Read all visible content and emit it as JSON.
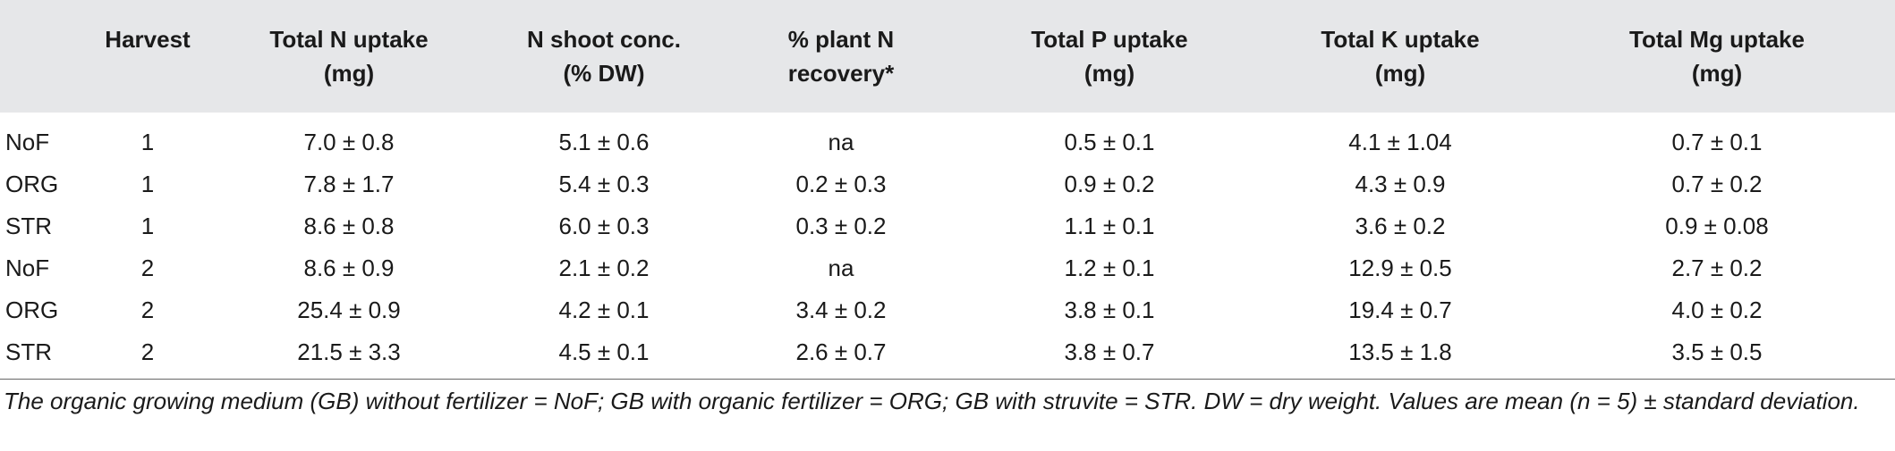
{
  "table": {
    "headers": [
      "",
      "Harvest",
      "Total N uptake (mg)",
      "N shoot conc. (% DW)",
      "% plant N recovery*",
      "Total P uptake (mg)",
      "Total K uptake (mg)",
      "Total Mg uptake (mg)"
    ],
    "header_lines": [
      [
        "",
        ""
      ],
      [
        "Harvest",
        ""
      ],
      [
        "Total N uptake",
        "(mg)"
      ],
      [
        "N shoot conc.",
        "(% DW)"
      ],
      [
        "% plant N",
        "recovery*"
      ],
      [
        "Total P uptake",
        "(mg)"
      ],
      [
        "Total K uptake",
        "(mg)"
      ],
      [
        "Total Mg uptake",
        "(mg)"
      ]
    ],
    "rows": [
      [
        "NoF",
        "1",
        "7.0 ± 0.8",
        "5.1 ± 0.6",
        "na",
        "0.5 ± 0.1",
        "4.1 ± 1.04",
        "0.7 ± 0.1"
      ],
      [
        "ORG",
        "1",
        "7.8 ± 1.7",
        "5.4 ± 0.3",
        "0.2 ± 0.3",
        "0.9 ± 0.2",
        "4.3 ± 0.9",
        "0.7 ± 0.2"
      ],
      [
        "STR",
        "1",
        "8.6 ± 0.8",
        "6.0 ± 0.3",
        "0.3 ± 0.2",
        "1.1 ± 0.1",
        "3.6 ± 0.2",
        "0.9 ± 0.08"
      ],
      [
        "NoF",
        "2",
        "8.6 ± 0.9",
        "2.1 ± 0.2",
        "na",
        "1.2 ± 0.1",
        "12.9 ± 0.5",
        "2.7 ± 0.2"
      ],
      [
        "ORG",
        "2",
        "25.4 ± 0.9",
        "4.2 ± 0.1",
        "3.4 ± 0.2",
        "3.8 ± 0.1",
        "19.4 ± 0.7",
        "4.0 ± 0.2"
      ],
      [
        "STR",
        "2",
        "21.5 ± 3.3",
        "4.5 ± 0.1",
        "2.6 ± 0.7",
        "3.8 ± 0.7",
        "13.5 ± 1.8",
        "3.5 ± 0.5"
      ]
    ]
  },
  "footnote": "The organic growing medium (GB) without fertilizer = NoF; GB with organic fertilizer = ORG; GB with struvite = STR. DW =  dry weight. Values are mean (n = 5) ± standard deviation.",
  "colors": {
    "header_background": "#e6e7e9",
    "text": "#1a1a1a"
  }
}
